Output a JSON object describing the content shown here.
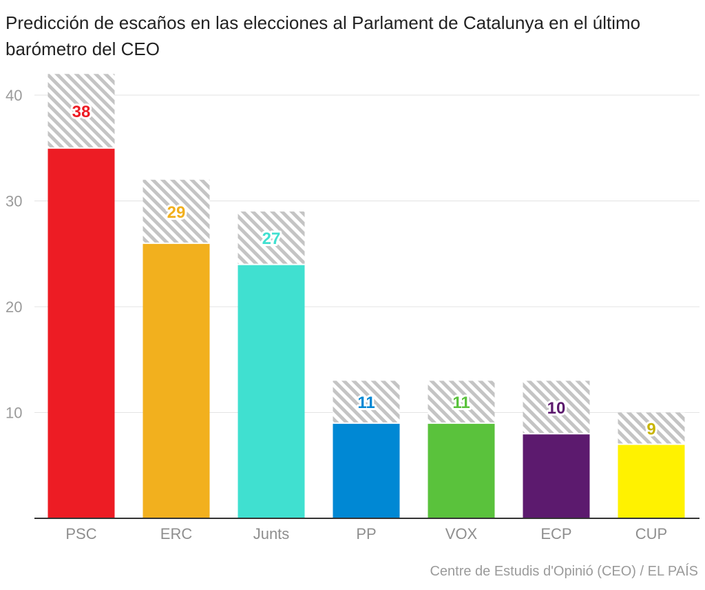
{
  "chart_data": {
    "type": "bar",
    "title": "Predicción de escaños en las elecciones al Parlament de Catalunya en el último barómetro del CEO",
    "source": "Centre de Estudis d'Opinió (CEO) / EL PAÍS",
    "xlabel": "",
    "ylabel": "",
    "ylim": [
      0,
      42
    ],
    "yticks": [
      10,
      20,
      30,
      40
    ],
    "grid": true,
    "categories": [
      "PSC",
      "ERC",
      "Junts",
      "PP",
      "VOX",
      "ECP",
      "CUP"
    ],
    "series": [
      {
        "values": [
          35,
          26,
          24,
          9,
          9,
          8,
          7
        ]
      },
      {
        "values": [
          42,
          32,
          29,
          13,
          13,
          13,
          10
        ]
      }
    ],
    "point_labels": [
      "38",
      "29",
      "27",
      "11",
      "11",
      "10",
      "9"
    ],
    "colors": [
      "#ed1c24",
      "#f2b01e",
      "#40e0d0",
      "#0088d4",
      "#5ac23c",
      "#5c1a6e",
      "#fff200"
    ],
    "label_colors": [
      "#ed1c24",
      "#f2b01e",
      "#40e0d0",
      "#0088d4",
      "#5ac23c",
      "#5c1a6e",
      "#c8b400"
    ],
    "range_color": "#c4c4c4"
  }
}
